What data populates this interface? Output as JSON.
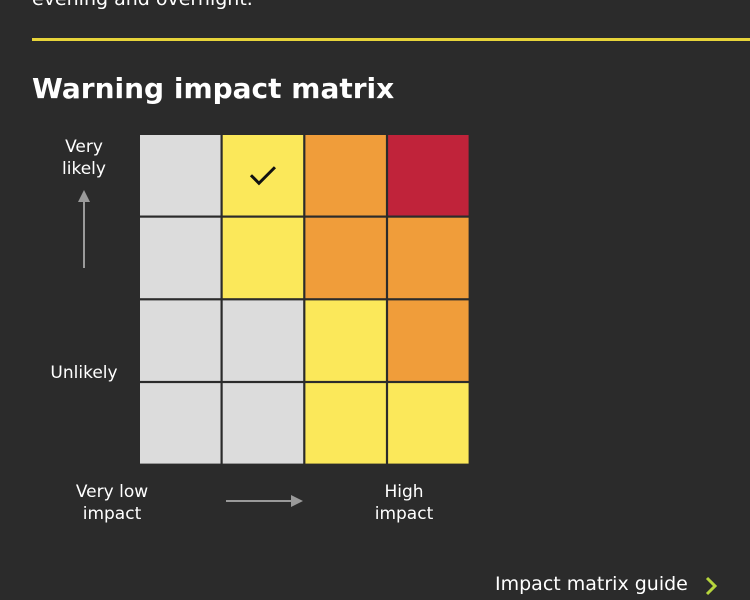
{
  "intro": {
    "text": "evening and overnight."
  },
  "matrix": {
    "title": "Warning impact matrix",
    "y_axis": {
      "top_label": "Very likely",
      "bottom_label": "Unlikely"
    },
    "x_axis": {
      "left_label": "Very low impact",
      "right_label": "High impact"
    },
    "rows": [
      [
        "#dcdcdc",
        "#fbe85a",
        "#f09d3a",
        "#c0233a"
      ],
      [
        "#dcdcdc",
        "#fbe85a",
        "#f09d3a",
        "#f09d3a"
      ],
      [
        "#dcdcdc",
        "#dcdcdc",
        "#fbe85a",
        "#f09d3a"
      ],
      [
        "#dcdcdc",
        "#dcdcdc",
        "#fbe85a",
        "#fbe85a"
      ]
    ],
    "selected": {
      "row": 0,
      "col": 1
    }
  },
  "link": {
    "text": "Impact matrix guide"
  }
}
